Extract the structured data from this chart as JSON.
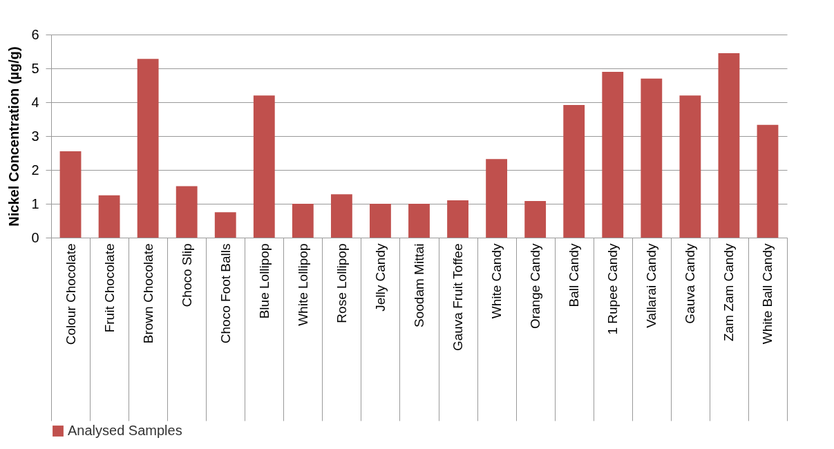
{
  "chart_data": {
    "type": "bar",
    "ylabel": "Nickel Concentration (µg/g)",
    "categories": [
      "Colour Chocolate",
      "Fruit Chocolate",
      "Brown Chocolate",
      "Choco Slip",
      "Choco Foot Balls",
      "Blue Lollipop",
      "White Lollipop",
      "Rose Lollipop",
      "Jelly Candy",
      "Soodam Mittai",
      "Gauva Fruit Toffee",
      "White Candy",
      "Orange Candy",
      "Ball Candy",
      "1 Rupee Candy",
      "Vallarai Candy",
      "Gauva Candy",
      "Zam Zam Candy",
      "White Ball Candy"
    ],
    "series": [
      {
        "name": "Analysed Samples",
        "color": "#c0504d",
        "values": [
          2.55,
          1.25,
          5.28,
          1.52,
          0.75,
          4.2,
          1.0,
          1.28,
          1.0,
          1.0,
          1.1,
          2.32,
          1.08,
          3.92,
          4.9,
          4.7,
          4.2,
          5.45,
          3.33
        ]
      }
    ],
    "ylim": [
      0,
      6
    ],
    "yticks": [
      0,
      1,
      2,
      3,
      4,
      5,
      6
    ],
    "grid": "y",
    "legend": "bottom"
  }
}
